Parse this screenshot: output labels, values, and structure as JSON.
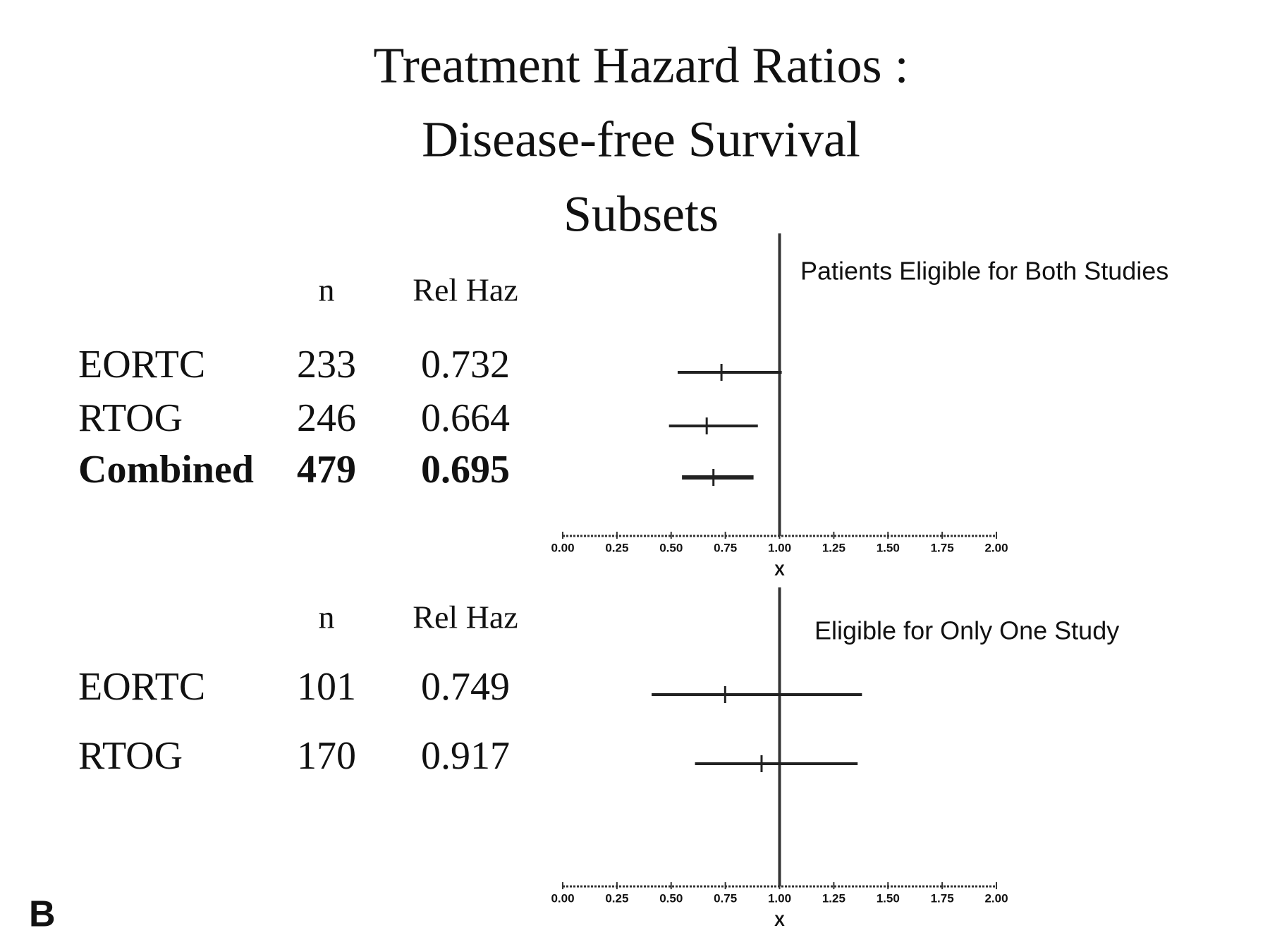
{
  "title": [
    "Treatment Hazard Ratios :",
    "Disease-free Survival",
    "Subsets"
  ],
  "panel_label": "B",
  "chart_data": [
    {
      "type": "forest",
      "subtitle": "Patients Eligible for Both Studies",
      "columns": [
        "n",
        "Rel Haz"
      ],
      "categories": [
        "EORTC",
        "RTOG",
        "Combined"
      ],
      "n": [
        233,
        246,
        479
      ],
      "values": [
        0.732,
        0.664,
        0.695
      ],
      "ci_low": [
        0.53,
        0.49,
        0.55
      ],
      "ci_high": [
        1.01,
        0.9,
        0.88
      ],
      "bold": [
        false,
        false,
        true
      ],
      "reference": 1,
      "xlim": [
        0,
        2
      ],
      "xticks": [
        {
          "value": 0,
          "label": "0.00"
        },
        {
          "value": 0.25,
          "label": "0.25"
        },
        {
          "value": 0.5,
          "label": "0.50"
        },
        {
          "value": 0.75,
          "label": "0.75"
        },
        {
          "value": 1,
          "label": "1.00"
        },
        {
          "value": 1.25,
          "label": "1.25"
        },
        {
          "value": 1.5,
          "label": "1.50"
        },
        {
          "value": 1.75,
          "label": "1.75"
        },
        {
          "value": 2,
          "label": "2.00"
        }
      ],
      "xlabel": "X",
      "color": "#222222"
    },
    {
      "type": "forest",
      "subtitle": "Eligible for Only One Study",
      "columns": [
        "n",
        "Rel Haz"
      ],
      "categories": [
        "EORTC",
        "RTOG"
      ],
      "n": [
        101,
        170
      ],
      "values": [
        0.749,
        0.917
      ],
      "ci_low": [
        0.41,
        0.61
      ],
      "ci_high": [
        1.38,
        1.36
      ],
      "bold": [
        false,
        false
      ],
      "reference": 1,
      "xlim": [
        0,
        2
      ],
      "xticks": [
        {
          "value": 0,
          "label": "0.00"
        },
        {
          "value": 0.25,
          "label": "0.25"
        },
        {
          "value": 0.5,
          "label": "0.50"
        },
        {
          "value": 0.75,
          "label": "0.75"
        },
        {
          "value": 1,
          "label": "1.00"
        },
        {
          "value": 1.25,
          "label": "1.25"
        },
        {
          "value": 1.5,
          "label": "1.50"
        },
        {
          "value": 1.75,
          "label": "1.75"
        },
        {
          "value": 2,
          "label": "2.00"
        }
      ],
      "xlabel": "X",
      "color": "#222222"
    }
  ]
}
